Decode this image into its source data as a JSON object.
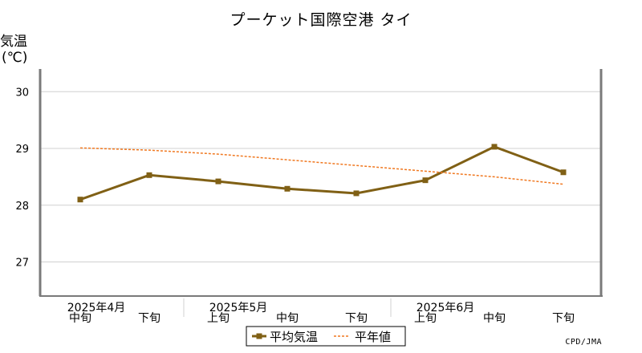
{
  "title": "プーケット国際空港 タイ",
  "credit": "CPD/JMA",
  "chart_data": {
    "type": "line",
    "ylabel": "気温",
    "yunit": "(℃)",
    "ylim": [
      26.4,
      30.4
    ],
    "yticks": [
      27,
      28,
      29,
      30
    ],
    "grid": true,
    "legend_position": "bottom-center",
    "categories": [
      "中旬",
      "下旬",
      "上旬",
      "中旬",
      "下旬",
      "上旬",
      "中旬",
      "下旬"
    ],
    "months": [
      {
        "label": "2025年4月",
        "start": 0
      },
      {
        "label": "2025年5月",
        "start": 2
      },
      {
        "label": "2025年6月",
        "start": 5
      }
    ],
    "series": [
      {
        "name": "平均気温",
        "values": [
          28.1,
          28.53,
          28.42,
          28.29,
          28.21,
          28.44,
          29.03,
          28.58
        ],
        "color": "#806015",
        "style": "solid-marker"
      },
      {
        "name": "平年値",
        "values": [
          29.01,
          28.97,
          28.9,
          28.8,
          28.7,
          28.6,
          28.5,
          28.37
        ],
        "color": "#f07820",
        "style": "dashed"
      }
    ]
  }
}
